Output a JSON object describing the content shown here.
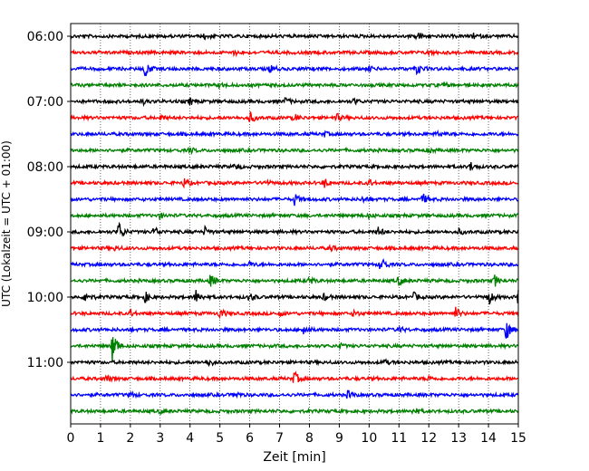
{
  "chart_data": {
    "type": "line",
    "title": "",
    "xlabel": "Zeit  [min]",
    "ylabel": "UTC (Lokalzeit = UTC + 01:00)",
    "xlim": [
      0,
      15
    ],
    "x_ticks": [
      "0",
      "1",
      "2",
      "3",
      "4",
      "5",
      "6",
      "7",
      "8",
      "9",
      "10",
      "11",
      "12",
      "13",
      "14",
      "15"
    ],
    "y_tick_labels": [
      "06:00",
      "07:00",
      "08:00",
      "09:00",
      "10:00",
      "11:00"
    ],
    "grid": "vertical dotted",
    "colors": [
      "#000000",
      "#ff0000",
      "#0000ff",
      "#008000"
    ],
    "traces": [
      {
        "time": "06:00",
        "color": "#000000",
        "events": [
          [
            11.6,
            0.6
          ],
          [
            4.5,
            0.3
          ],
          [
            13.5,
            0.3
          ]
        ]
      },
      {
        "time": "06:15",
        "color": "#ff0000",
        "events": [
          [
            12.0,
            0.3
          ],
          [
            5.5,
            0.25
          ]
        ]
      },
      {
        "time": "06:30",
        "color": "#0000ff",
        "events": [
          [
            2.5,
            1.0
          ],
          [
            11.6,
            0.7
          ],
          [
            6.7,
            0.5
          ],
          [
            10.0,
            0.3
          ]
        ]
      },
      {
        "time": "06:45",
        "color": "#008000",
        "events": [
          [
            5.0,
            0.25
          ],
          [
            12.5,
            0.25
          ]
        ]
      },
      {
        "time": "07:00",
        "color": "#000000",
        "events": [
          [
            4.0,
            0.4
          ],
          [
            7.2,
            0.4
          ],
          [
            9.5,
            0.3
          ],
          [
            2.4,
            0.3
          ]
        ]
      },
      {
        "time": "07:15",
        "color": "#ff0000",
        "events": [
          [
            6.0,
            0.7
          ],
          [
            8.9,
            0.5
          ],
          [
            7.5,
            0.4
          ],
          [
            3.0,
            0.3
          ]
        ]
      },
      {
        "time": "07:30",
        "color": "#0000ff",
        "events": [
          [
            12.3,
            0.3
          ],
          [
            8.5,
            0.25
          ]
        ]
      },
      {
        "time": "07:45",
        "color": "#008000",
        "events": [
          [
            4.0,
            0.3
          ],
          [
            12.0,
            0.25
          ]
        ]
      },
      {
        "time": "08:00",
        "color": "#000000",
        "events": [
          [
            13.4,
            0.5
          ],
          [
            5.5,
            0.3
          ]
        ]
      },
      {
        "time": "08:15",
        "color": "#ff0000",
        "events": [
          [
            3.8,
            0.5
          ],
          [
            8.5,
            0.5
          ],
          [
            10.0,
            0.4
          ],
          [
            6.5,
            0.3
          ]
        ]
      },
      {
        "time": "08:30",
        "color": "#0000ff",
        "events": [
          [
            7.5,
            0.7
          ],
          [
            11.8,
            0.6
          ],
          [
            9.8,
            0.3
          ]
        ]
      },
      {
        "time": "08:45",
        "color": "#008000",
        "events": [
          [
            3.0,
            0.3
          ],
          [
            10.0,
            0.25
          ]
        ]
      },
      {
        "time": "09:00",
        "color": "#000000",
        "events": [
          [
            1.6,
            1.3
          ],
          [
            2.8,
            0.6
          ],
          [
            4.5,
            0.5
          ],
          [
            10.3,
            0.5
          ],
          [
            13.0,
            0.3
          ]
        ]
      },
      {
        "time": "09:15",
        "color": "#ff0000",
        "events": [
          [
            8.7,
            0.3
          ],
          [
            1.5,
            0.25
          ]
        ]
      },
      {
        "time": "09:30",
        "color": "#0000ff",
        "events": [
          [
            10.4,
            1.0
          ],
          [
            6.0,
            0.3
          ]
        ]
      },
      {
        "time": "09:45",
        "color": "#008000",
        "events": [
          [
            4.7,
            0.8
          ],
          [
            14.2,
            0.7
          ],
          [
            11.0,
            0.6
          ],
          [
            8.0,
            0.4
          ]
        ]
      },
      {
        "time": "10:00",
        "color": "#000000",
        "events": [
          [
            0.5,
            0.8
          ],
          [
            2.5,
            0.6
          ],
          [
            4.2,
            0.8
          ],
          [
            6.0,
            0.5
          ],
          [
            14.0,
            1.0
          ],
          [
            15.0,
            0.9
          ],
          [
            11.5,
            0.5
          ],
          [
            8.5,
            0.4
          ]
        ]
      },
      {
        "time": "10:15",
        "color": "#ff0000",
        "events": [
          [
            5.0,
            0.6
          ],
          [
            12.9,
            0.7
          ],
          [
            9.5,
            0.4
          ],
          [
            2.0,
            0.4
          ],
          [
            7.0,
            0.3
          ]
        ]
      },
      {
        "time": "10:30",
        "color": "#0000ff",
        "events": [
          [
            14.6,
            1.2
          ],
          [
            7.8,
            0.7
          ],
          [
            11.0,
            0.3
          ]
        ]
      },
      {
        "time": "10:45",
        "color": "#008000",
        "events": [
          [
            1.4,
            2.2
          ],
          [
            9.0,
            0.3
          ]
        ]
      },
      {
        "time": "11:00",
        "color": "#000000",
        "events": [
          [
            4.6,
            0.6
          ],
          [
            10.5,
            0.3
          ]
        ]
      },
      {
        "time": "11:15",
        "color": "#ff0000",
        "events": [
          [
            7.5,
            0.8
          ],
          [
            1.2,
            0.4
          ],
          [
            12.0,
            0.3
          ]
        ]
      },
      {
        "time": "11:30",
        "color": "#0000ff",
        "events": [
          [
            9.3,
            0.5
          ],
          [
            5.5,
            0.4
          ],
          [
            2.0,
            0.3
          ]
        ]
      },
      {
        "time": "11:45",
        "color": "#008000",
        "events": [
          [
            11.5,
            0.4
          ],
          [
            3.0,
            0.25
          ]
        ]
      }
    ]
  }
}
